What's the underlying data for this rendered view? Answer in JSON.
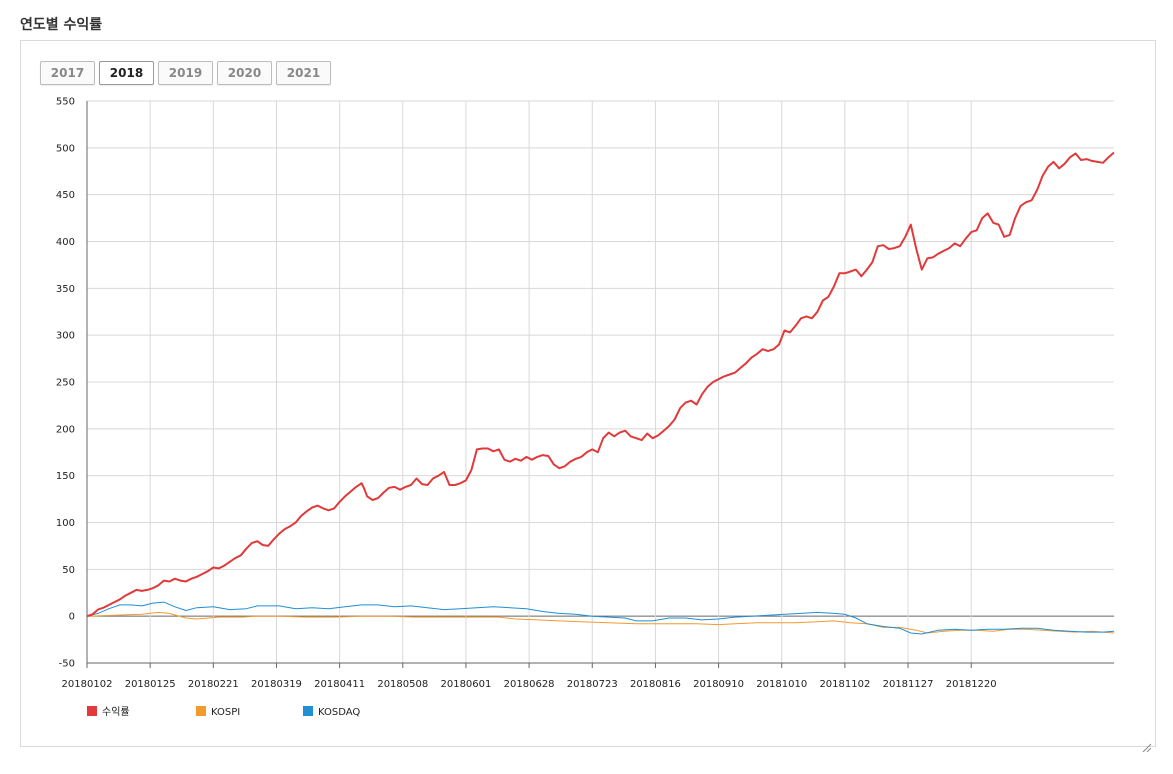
{
  "page": {
    "title": "연도별 수익률"
  },
  "year_tabs": [
    {
      "label": "2017",
      "active": false
    },
    {
      "label": "2018",
      "active": true
    },
    {
      "label": "2019",
      "active": false
    },
    {
      "label": "2020",
      "active": false
    },
    {
      "label": "2021",
      "active": false
    }
  ],
  "chart_data": {
    "type": "line",
    "title": "",
    "xlabel": "",
    "ylabel": "",
    "ylim": [
      -50,
      550
    ],
    "yticks": [
      -50,
      0,
      50,
      100,
      150,
      200,
      250,
      300,
      350,
      400,
      450,
      500,
      550
    ],
    "x_tick_labels": [
      "20180102",
      "20180125",
      "20180221",
      "20180319",
      "20180411",
      "20180508",
      "20180601",
      "20180628",
      "20180723",
      "20180816",
      "20180910",
      "20181010",
      "20181102",
      "20181127",
      "20181220"
    ],
    "grid": true,
    "legend_position": "bottom-left",
    "colors": {
      "수익률": "#e03a3a",
      "KOSPI": "#f29a2e",
      "KOSDAQ": "#1f8fd6"
    },
    "series": [
      {
        "name": "수익률",
        "points": [
          [
            0,
            0
          ],
          [
            2,
            2
          ],
          [
            4,
            7
          ],
          [
            6,
            9
          ],
          [
            8,
            12
          ],
          [
            10,
            15
          ],
          [
            12,
            18
          ],
          [
            14,
            22
          ],
          [
            16,
            25
          ],
          [
            18,
            28
          ],
          [
            20,
            27
          ],
          [
            22,
            28
          ],
          [
            24,
            30
          ],
          [
            26,
            33
          ],
          [
            28,
            38
          ],
          [
            30,
            37
          ],
          [
            32,
            40
          ],
          [
            34,
            38
          ],
          [
            36,
            37
          ],
          [
            38,
            40
          ],
          [
            40,
            42
          ],
          [
            42,
            45
          ],
          [
            44,
            48
          ],
          [
            46,
            52
          ],
          [
            48,
            51
          ],
          [
            50,
            54
          ],
          [
            52,
            58
          ],
          [
            54,
            62
          ],
          [
            56,
            65
          ],
          [
            58,
            72
          ],
          [
            60,
            78
          ],
          [
            62,
            80
          ],
          [
            64,
            76
          ],
          [
            66,
            75
          ],
          [
            68,
            82
          ],
          [
            70,
            88
          ],
          [
            72,
            93
          ],
          [
            74,
            96
          ],
          [
            76,
            100
          ],
          [
            78,
            107
          ],
          [
            80,
            112
          ],
          [
            82,
            116
          ],
          [
            84,
            118
          ],
          [
            86,
            115
          ],
          [
            88,
            113
          ],
          [
            90,
            115
          ],
          [
            92,
            122
          ],
          [
            94,
            128
          ],
          [
            96,
            133
          ],
          [
            98,
            138
          ],
          [
            100,
            142
          ],
          [
            101,
            136
          ],
          [
            102,
            128
          ],
          [
            104,
            124
          ],
          [
            106,
            126
          ],
          [
            108,
            132
          ],
          [
            110,
            137
          ],
          [
            112,
            138
          ],
          [
            114,
            135
          ],
          [
            116,
            138
          ],
          [
            118,
            140
          ],
          [
            120,
            147
          ],
          [
            122,
            141
          ],
          [
            124,
            140
          ],
          [
            126,
            147
          ],
          [
            128,
            150
          ],
          [
            130,
            154
          ],
          [
            132,
            140
          ],
          [
            134,
            140
          ],
          [
            136,
            142
          ],
          [
            138,
            145
          ],
          [
            140,
            156
          ],
          [
            142,
            178
          ],
          [
            144,
            179
          ],
          [
            146,
            179
          ],
          [
            148,
            176
          ],
          [
            150,
            178
          ],
          [
            152,
            167
          ],
          [
            154,
            165
          ],
          [
            156,
            168
          ],
          [
            158,
            166
          ],
          [
            160,
            170
          ],
          [
            162,
            167
          ],
          [
            164,
            170
          ],
          [
            166,
            172
          ],
          [
            168,
            171
          ],
          [
            170,
            162
          ],
          [
            172,
            158
          ],
          [
            174,
            160
          ],
          [
            176,
            165
          ],
          [
            178,
            168
          ],
          [
            180,
            170
          ],
          [
            182,
            175
          ],
          [
            184,
            178
          ],
          [
            186,
            175
          ],
          [
            188,
            190
          ],
          [
            190,
            196
          ],
          [
            192,
            192
          ],
          [
            194,
            196
          ],
          [
            196,
            198
          ],
          [
            198,
            192
          ],
          [
            200,
            190
          ],
          [
            202,
            188
          ],
          [
            204,
            195
          ],
          [
            206,
            190
          ],
          [
            208,
            193
          ],
          [
            210,
            198
          ],
          [
            212,
            203
          ],
          [
            214,
            210
          ],
          [
            216,
            222
          ],
          [
            218,
            228
          ],
          [
            220,
            230
          ],
          [
            222,
            226
          ],
          [
            224,
            237
          ],
          [
            226,
            245
          ],
          [
            228,
            250
          ],
          [
            230,
            253
          ],
          [
            232,
            256
          ],
          [
            234,
            258
          ],
          [
            236,
            260
          ],
          [
            238,
            265
          ],
          [
            240,
            270
          ],
          [
            242,
            276
          ],
          [
            244,
            280
          ],
          [
            246,
            285
          ],
          [
            248,
            283
          ],
          [
            250,
            285
          ],
          [
            252,
            290
          ],
          [
            254,
            305
          ],
          [
            256,
            303
          ],
          [
            258,
            310
          ],
          [
            260,
            318
          ],
          [
            262,
            320
          ],
          [
            264,
            318
          ],
          [
            266,
            325
          ],
          [
            268,
            337
          ],
          [
            270,
            341
          ],
          [
            272,
            352
          ],
          [
            274,
            366
          ],
          [
            276,
            366
          ],
          [
            278,
            368
          ],
          [
            280,
            370
          ],
          [
            282,
            363
          ],
          [
            284,
            370
          ],
          [
            286,
            378
          ],
          [
            288,
            395
          ],
          [
            290,
            396
          ],
          [
            292,
            392
          ],
          [
            294,
            393
          ],
          [
            296,
            395
          ],
          [
            298,
            405
          ],
          [
            300,
            418
          ],
          [
            302,
            392
          ],
          [
            304,
            370
          ],
          [
            306,
            382
          ],
          [
            308,
            383
          ],
          [
            310,
            387
          ],
          [
            312,
            390
          ],
          [
            314,
            393
          ],
          [
            316,
            398
          ],
          [
            318,
            395
          ],
          [
            320,
            403
          ],
          [
            322,
            410
          ],
          [
            324,
            412
          ],
          [
            326,
            425
          ],
          [
            328,
            430
          ],
          [
            330,
            420
          ],
          [
            332,
            418
          ],
          [
            334,
            405
          ],
          [
            336,
            407
          ],
          [
            338,
            425
          ],
          [
            340,
            438
          ],
          [
            342,
            442
          ],
          [
            344,
            444
          ],
          [
            346,
            455
          ],
          [
            348,
            470
          ],
          [
            350,
            480
          ],
          [
            352,
            485
          ],
          [
            354,
            478
          ],
          [
            356,
            483
          ],
          [
            358,
            490
          ],
          [
            360,
            494
          ],
          [
            362,
            487
          ],
          [
            364,
            488
          ],
          [
            366,
            486
          ],
          [
            368,
            485
          ],
          [
            370,
            484
          ],
          [
            372,
            490
          ],
          [
            374,
            495
          ]
        ]
      },
      {
        "name": "KOSPI",
        "points": [
          [
            0,
            0
          ],
          [
            10,
            1
          ],
          [
            20,
            2
          ],
          [
            26,
            4
          ],
          [
            30,
            3
          ],
          [
            36,
            -2
          ],
          [
            40,
            -3
          ],
          [
            48,
            -1
          ],
          [
            56,
            -1
          ],
          [
            62,
            0
          ],
          [
            70,
            0
          ],
          [
            80,
            -1
          ],
          [
            90,
            -1
          ],
          [
            100,
            0
          ],
          [
            110,
            0
          ],
          [
            120,
            -1
          ],
          [
            130,
            -1
          ],
          [
            140,
            -1
          ],
          [
            150,
            -1
          ],
          [
            156,
            -3
          ],
          [
            164,
            -4
          ],
          [
            172,
            -5
          ],
          [
            180,
            -6
          ],
          [
            190,
            -7
          ],
          [
            200,
            -8
          ],
          [
            206,
            -8
          ],
          [
            214,
            -8
          ],
          [
            222,
            -8
          ],
          [
            230,
            -9
          ],
          [
            236,
            -8
          ],
          [
            244,
            -7
          ],
          [
            250,
            -7
          ],
          [
            258,
            -7
          ],
          [
            266,
            -6
          ],
          [
            272,
            -5
          ],
          [
            278,
            -7
          ],
          [
            284,
            -8
          ],
          [
            290,
            -12
          ],
          [
            296,
            -12
          ],
          [
            302,
            -15
          ],
          [
            306,
            -18
          ],
          [
            312,
            -16
          ],
          [
            318,
            -15
          ],
          [
            324,
            -15
          ],
          [
            330,
            -16
          ],
          [
            336,
            -14
          ],
          [
            342,
            -14
          ],
          [
            348,
            -15
          ],
          [
            354,
            -16
          ],
          [
            360,
            -17
          ],
          [
            366,
            -16
          ],
          [
            370,
            -17
          ],
          [
            374,
            -18
          ]
        ]
      },
      {
        "name": "KOSDAQ",
        "points": [
          [
            0,
            0
          ],
          [
            4,
            3
          ],
          [
            8,
            8
          ],
          [
            12,
            12
          ],
          [
            16,
            12
          ],
          [
            20,
            11
          ],
          [
            24,
            14
          ],
          [
            28,
            15
          ],
          [
            32,
            10
          ],
          [
            36,
            6
          ],
          [
            40,
            9
          ],
          [
            46,
            10
          ],
          [
            52,
            7
          ],
          [
            58,
            8
          ],
          [
            62,
            11
          ],
          [
            70,
            11
          ],
          [
            76,
            8
          ],
          [
            82,
            9
          ],
          [
            88,
            8
          ],
          [
            94,
            10
          ],
          [
            100,
            12
          ],
          [
            106,
            12
          ],
          [
            112,
            10
          ],
          [
            118,
            11
          ],
          [
            124,
            9
          ],
          [
            130,
            7
          ],
          [
            136,
            8
          ],
          [
            142,
            9
          ],
          [
            148,
            10
          ],
          [
            154,
            9
          ],
          [
            160,
            8
          ],
          [
            166,
            5
          ],
          [
            172,
            3
          ],
          [
            178,
            2
          ],
          [
            184,
            0
          ],
          [
            190,
            -1
          ],
          [
            196,
            -2
          ],
          [
            200,
            -5
          ],
          [
            206,
            -5
          ],
          [
            212,
            -2
          ],
          [
            218,
            -2
          ],
          [
            224,
            -4
          ],
          [
            230,
            -3
          ],
          [
            236,
            -1
          ],
          [
            242,
            0
          ],
          [
            248,
            1
          ],
          [
            254,
            2
          ],
          [
            260,
            3
          ],
          [
            266,
            4
          ],
          [
            272,
            3
          ],
          [
            276,
            2
          ],
          [
            280,
            -2
          ],
          [
            284,
            -8
          ],
          [
            290,
            -11
          ],
          [
            296,
            -13
          ],
          [
            300,
            -18
          ],
          [
            304,
            -19
          ],
          [
            310,
            -15
          ],
          [
            316,
            -14
          ],
          [
            322,
            -15
          ],
          [
            328,
            -14
          ],
          [
            334,
            -14
          ],
          [
            340,
            -13
          ],
          [
            346,
            -13
          ],
          [
            352,
            -15
          ],
          [
            358,
            -16
          ],
          [
            364,
            -17
          ],
          [
            370,
            -17
          ],
          [
            374,
            -16
          ]
        ]
      }
    ]
  }
}
